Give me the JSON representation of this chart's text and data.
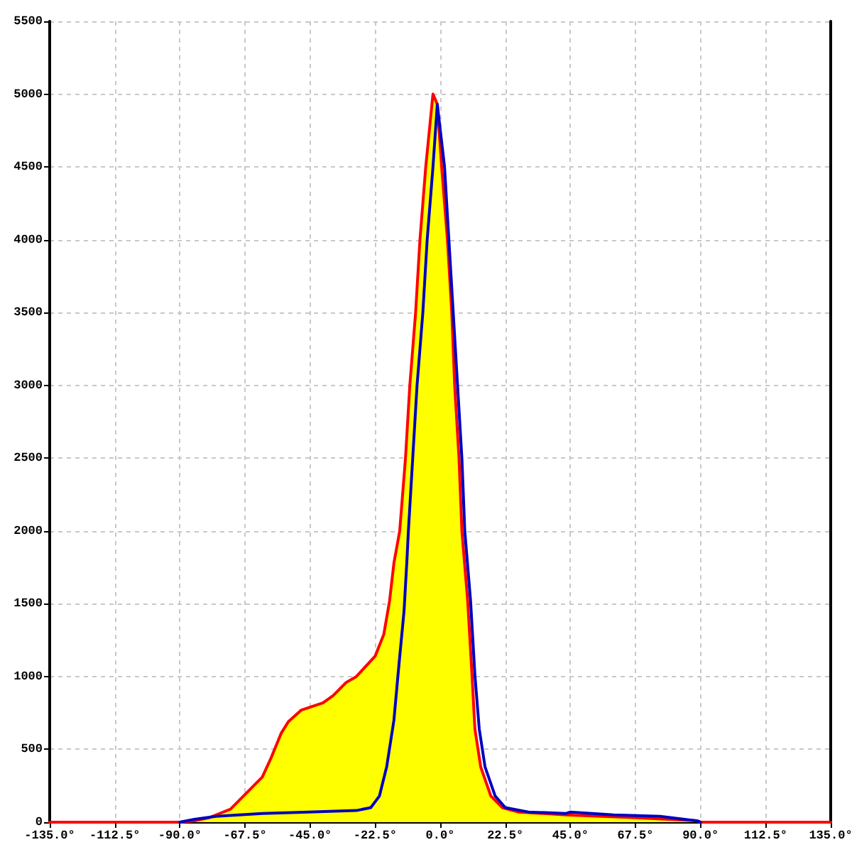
{
  "chart_data": {
    "type": "line",
    "series": [
      {
        "type": "area",
        "color": "#ffff00",
        "x": [
          -90,
          -85,
          -80,
          -77.5,
          -72.5,
          -68,
          -61.5,
          -58.5,
          -55,
          -52.5,
          -48,
          -40.5,
          -37,
          -32.5,
          -29,
          -22.5,
          -19.5,
          -17.5,
          -16,
          -14,
          -12,
          -10.5,
          -8.5,
          -7,
          -5,
          -2.5,
          -1,
          0.5,
          2.5,
          4,
          5,
          6.5,
          7.5,
          9.5,
          11,
          12,
          14,
          17.5,
          21.5,
          27,
          43.5,
          68,
          89,
          90
        ],
        "values": [
          0,
          10,
          30,
          50,
          90,
          180,
          310,
          440,
          610,
          690,
          770,
          820,
          870,
          960,
          1000,
          1140,
          1290,
          1520,
          1780,
          2000,
          2500,
          3000,
          3500,
          4000,
          4500,
          5000,
          4930,
          4500,
          4000,
          3500,
          3000,
          2500,
          2000,
          1520,
          1010,
          640,
          380,
          180,
          100,
          70,
          50,
          30,
          10,
          0
        ]
      },
      {
        "type": "line",
        "color": "#ff0000",
        "x": [
          -135,
          -90,
          -85,
          -80,
          -77.5,
          -72.5,
          -68,
          -61.5,
          -58.5,
          -55,
          -52.5,
          -48,
          -40.5,
          -37,
          -32.5,
          -29,
          -22.5,
          -19.5,
          -17.5,
          -16,
          -14,
          -12,
          -10.5,
          -8.5,
          -7,
          -5,
          -2.5,
          -1,
          0.5,
          2.5,
          4,
          5,
          6.5,
          7.5,
          9.5,
          11,
          12,
          14,
          17.5,
          21.5,
          27,
          43.5,
          68,
          89,
          90,
          135
        ],
        "values": [
          0,
          0,
          10,
          30,
          50,
          90,
          180,
          310,
          440,
          610,
          690,
          770,
          820,
          870,
          960,
          1000,
          1140,
          1290,
          1520,
          1780,
          2000,
          2500,
          3000,
          3500,
          4000,
          4500,
          5000,
          4930,
          4500,
          4000,
          3500,
          3000,
          2500,
          2000,
          1520,
          1010,
          640,
          380,
          180,
          100,
          70,
          50,
          30,
          10,
          0,
          0
        ]
      },
      {
        "color": "#0000c0",
        "x": [
          -90,
          -85,
          -77.5,
          -69.5,
          -61.5,
          -45.5,
          -29,
          -24,
          -21,
          -18.5,
          -16,
          -14.5,
          -12.5,
          -11.5,
          -11,
          -9.5,
          -8,
          -6,
          -4.5,
          -2.5,
          -1,
          1.5,
          3,
          4.5,
          6,
          7.5,
          8.5,
          10.5,
          12,
          13.5,
          15.5,
          19,
          22.5,
          30.5,
          43.5,
          45,
          60,
          76,
          88.5,
          90
        ],
        "values": [
          0,
          20,
          40,
          50,
          60,
          70,
          80,
          100,
          180,
          380,
          700,
          1030,
          1450,
          1800,
          2000,
          2500,
          3000,
          3500,
          4000,
          4500,
          4930,
          4500,
          4000,
          3500,
          3000,
          2500,
          2000,
          1520,
          1010,
          640,
          380,
          180,
          100,
          70,
          60,
          70,
          50,
          40,
          10,
          0
        ]
      }
    ],
    "xlim": [
      -135,
      135
    ],
    "xticks": [
      {
        "value": -135,
        "label": "-135.0°"
      },
      {
        "value": -112.5,
        "label": "-112.5°"
      },
      {
        "value": -90,
        "label": "-90.0°"
      },
      {
        "value": -67.5,
        "label": "-67.5°"
      },
      {
        "value": -45,
        "label": "-45.0°"
      },
      {
        "value": -22.5,
        "label": "-22.5°"
      },
      {
        "value": 0,
        "label": "0.0°"
      },
      {
        "value": 22.5,
        "label": "22.5°"
      },
      {
        "value": 45,
        "label": "45.0°"
      },
      {
        "value": 67.5,
        "label": "67.5°"
      },
      {
        "value": 90,
        "label": "90.0°"
      },
      {
        "value": 112.5,
        "label": "112.5°"
      },
      {
        "value": 135,
        "label": "135.0°"
      }
    ],
    "ylim": [
      0,
      5500
    ],
    "yticks": [
      0,
      500,
      1000,
      1500,
      2000,
      2500,
      3000,
      3500,
      4000,
      4500,
      5000,
      5500
    ],
    "grid": true,
    "marker": "none"
  }
}
